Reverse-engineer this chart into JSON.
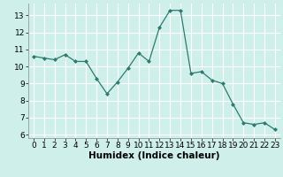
{
  "x": [
    0,
    1,
    2,
    3,
    4,
    5,
    6,
    7,
    8,
    9,
    10,
    11,
    12,
    13,
    14,
    15,
    16,
    17,
    18,
    19,
    20,
    21,
    22,
    23
  ],
  "y": [
    10.6,
    10.5,
    10.4,
    10.7,
    10.3,
    10.3,
    9.3,
    8.4,
    9.1,
    9.9,
    10.8,
    10.3,
    12.3,
    13.3,
    13.3,
    9.6,
    9.7,
    9.2,
    9.0,
    7.8,
    6.7,
    6.6,
    6.7,
    6.3
  ],
  "line_color": "#2d7a6e",
  "marker": "D",
  "marker_size": 2.0,
  "bg_color": "#cff0ea",
  "grid_color": "#ffffff",
  "xlabel": "Humidex (Indice chaleur)",
  "xlim": [
    -0.5,
    23.5
  ],
  "ylim": [
    5.8,
    13.7
  ],
  "yticks": [
    6,
    7,
    8,
    9,
    10,
    11,
    12,
    13
  ],
  "xticks": [
    0,
    1,
    2,
    3,
    4,
    5,
    6,
    7,
    8,
    9,
    10,
    11,
    12,
    13,
    14,
    15,
    16,
    17,
    18,
    19,
    20,
    21,
    22,
    23
  ],
  "tick_label_fontsize": 6.5,
  "xlabel_fontsize": 7.5
}
